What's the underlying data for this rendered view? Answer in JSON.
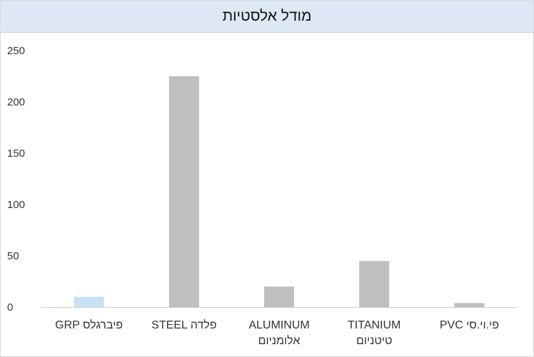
{
  "chart_data": {
    "type": "bar",
    "title": "מודל אלסטיות",
    "xlabel": "",
    "ylabel": "",
    "ylim": [
      0,
      250
    ],
    "yticks": [
      0,
      50,
      100,
      150,
      200,
      250
    ],
    "grid": false,
    "legend": "none",
    "categories": [
      [
        "GRP פיברגלס"
      ],
      [
        "STEEL פלדה"
      ],
      [
        "ALUMINUM",
        "אלומניום"
      ],
      [
        "TITANIUM",
        "טיטניום"
      ],
      [
        "PVC פי.וי.סי"
      ]
    ],
    "values": [
      10,
      225,
      20,
      45,
      4
    ],
    "colors": [
      "#c9e1f2",
      "#bfbfbf",
      "#bfbfbf",
      "#bfbfbf",
      "#bfbfbf"
    ]
  }
}
